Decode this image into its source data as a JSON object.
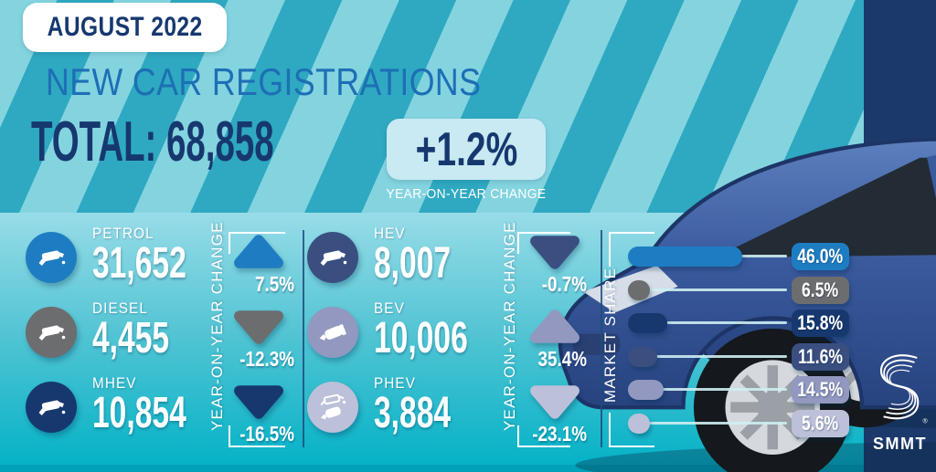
{
  "title_block": {
    "badge": "AUGUST 2022",
    "title": "NEW CAR REGISTRATIONS",
    "total": "TOTAL: 68,858",
    "yoy_change": "+1.2%",
    "yoy_caption": "YEAR-ON-YEAR CHANGE"
  },
  "axis_labels": {
    "yoy": "YEAR-ON-YEAR CHANGE",
    "market_share": "MARKET SHARE"
  },
  "fuel_stats": [
    {
      "label": "PETROL",
      "value": "31,652",
      "yoy": "7.5%",
      "direction": "up",
      "share": "46.0%",
      "share_value": 46.0,
      "color": "#1e7dc2",
      "icon": "fuel-nozzle-icon"
    },
    {
      "label": "DIESEL",
      "value": "4,455",
      "yoy": "-12.3%",
      "direction": "down",
      "share": "6.5%",
      "share_value": 6.5,
      "color": "#6c6d6f",
      "icon": "fuel-nozzle-icon"
    },
    {
      "label": "MHEV",
      "value": "10,854",
      "yoy": "-16.5%",
      "direction": "down",
      "share": "15.8%",
      "share_value": 15.8,
      "color": "#16386f",
      "icon": "fuel-nozzle-icon"
    },
    {
      "label": "HEV",
      "value": "8,007",
      "yoy": "-0.7%",
      "direction": "down",
      "share": "11.6%",
      "share_value": 11.6,
      "color": "#3a4f80",
      "icon": "fuel-nozzle-icon"
    },
    {
      "label": "BEV",
      "value": "10,006",
      "yoy": "35.4%",
      "direction": "up",
      "share": "14.5%",
      "share_value": 14.5,
      "color": "#9298c0",
      "icon": "ev-plug-icon"
    },
    {
      "label": "PHEV",
      "value": "3,884",
      "yoy": "-23.1%",
      "direction": "down",
      "share": "5.6%",
      "share_value": 5.6,
      "color": "#bcc0d9",
      "icon": "hybrid-nozzle-plug-icon"
    }
  ],
  "logo": {
    "name": "SMMT"
  },
  "colors": {
    "background_teal": "#2fa9c1",
    "background_stripe": "#84d4e0",
    "bottom_gradient_top": "#98dce8",
    "bottom_gradient_bottom": "#01b1c6",
    "navy_band": "#1b3a6b",
    "heading_navy": "#16386f",
    "heading_blue": "#1d6fb5",
    "yoy_box_bg": "#c9e9f3"
  },
  "chart_data": {
    "type": "bar",
    "title": "NEW CAR REGISTRATIONS — AUGUST 2022",
    "total_registrations": 68858,
    "total_yoy_change_pct": 1.2,
    "categories": [
      "PETROL",
      "DIESEL",
      "MHEV",
      "HEV",
      "BEV",
      "PHEV"
    ],
    "series": [
      {
        "name": "Registrations",
        "values": [
          31652,
          4455,
          10854,
          8007,
          10006,
          3884
        ]
      },
      {
        "name": "Year-on-year change %",
        "values": [
          7.5,
          -12.3,
          -16.5,
          -0.7,
          35.4,
          -23.1
        ]
      },
      {
        "name": "Market share %",
        "values": [
          46.0,
          6.5,
          15.8,
          11.6,
          14.5,
          5.6
        ]
      }
    ],
    "legend_position": "none",
    "grid": false,
    "xlabel": "",
    "ylabel": "MARKET SHARE",
    "xlim": [
      0,
      100
    ]
  }
}
